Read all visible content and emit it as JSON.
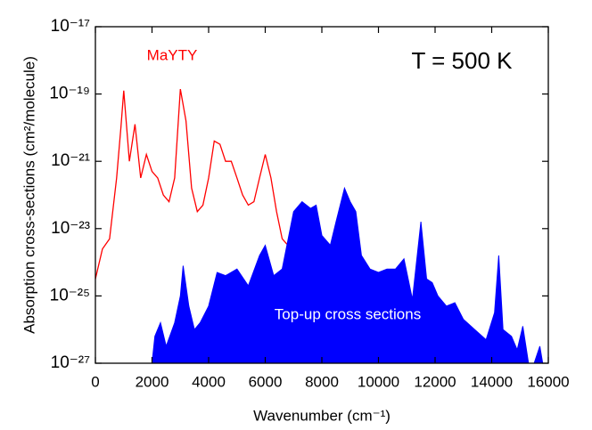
{
  "chart_data": {
    "type": "line-area",
    "annotation": "T = 500 K",
    "xlabel": "Wavenumber (cm⁻¹)",
    "ylabel": "Absorption cross-sections (cm²/molecule)",
    "xlim": [
      0,
      16000
    ],
    "xticks": [
      0,
      2000,
      4000,
      6000,
      8000,
      10000,
      12000,
      14000,
      16000
    ],
    "ylim": [
      1e-27,
      1e-17
    ],
    "yscale": "log",
    "yticks": [
      {
        "value": 1e-27,
        "label": "10⁻²⁷"
      },
      {
        "value": 1e-25,
        "label": "10⁻²⁵"
      },
      {
        "value": 1e-23,
        "label": "10⁻²³"
      },
      {
        "value": 1e-21,
        "label": "10⁻²¹"
      },
      {
        "value": 1e-19,
        "label": "10⁻¹⁹"
      },
      {
        "value": 1e-17,
        "label": "10⁻¹⁷"
      }
    ],
    "series": [
      {
        "name": "MaYTY",
        "color": "#ff0000",
        "style": "line",
        "x": [
          0,
          250,
          500,
          750,
          900,
          1000,
          1200,
          1400,
          1600,
          1800,
          2000,
          2200,
          2400,
          2600,
          2800,
          3000,
          3200,
          3400,
          3600,
          3800,
          4000,
          4200,
          4400,
          4600,
          4800,
          5000,
          5200,
          5400,
          5600,
          5800,
          6000,
          6200,
          6400,
          6600,
          6800,
          7000
        ],
        "values": [
          3.2e-25,
          2.5e-24,
          5e-24,
          3.2e-22,
          1e-20,
          1.26e-19,
          1e-21,
          1.26e-20,
          3.2e-22,
          1.6e-21,
          5e-22,
          3.2e-22,
          1e-22,
          6.3e-23,
          3.2e-22,
          1.4e-19,
          1.6e-20,
          1.6e-22,
          3.2e-23,
          5e-23,
          3.2e-22,
          4e-21,
          3.2e-21,
          1e-21,
          1e-21,
          3.2e-22,
          1e-22,
          5e-23,
          6.3e-23,
          3.2e-22,
          1.6e-21,
          3.2e-22,
          3.2e-23,
          5e-24,
          3.2e-24,
          1.6e-23
        ]
      },
      {
        "name": "Top-up cross sections",
        "color": "#0000ff",
        "style": "area",
        "x": [
          2000,
          2100,
          2300,
          2500,
          2800,
          3000,
          3100,
          3300,
          3500,
          3700,
          4000,
          4300,
          4600,
          5000,
          5400,
          5800,
          6000,
          6300,
          6600,
          7000,
          7300,
          7600,
          7800,
          8000,
          8300,
          8500,
          8800,
          9000,
          9200,
          9400,
          9700,
          10000,
          10300,
          10600,
          10900,
          11200,
          11500,
          11700,
          11900,
          12100,
          12400,
          12700,
          13000,
          13400,
          13800,
          14100,
          14250,
          14400,
          14700,
          14900,
          15100,
          15300,
          15500,
          15700,
          15800
        ],
        "values": [
          1e-27,
          6.3e-27,
          1.6e-26,
          3.2e-27,
          1.6e-26,
          1e-25,
          7.9e-25,
          5e-26,
          1e-26,
          1.6e-26,
          5e-26,
          5e-25,
          4e-25,
          6.3e-25,
          2e-25,
          1.6e-24,
          3.2e-24,
          4e-25,
          6.3e-25,
          3.2e-23,
          6.3e-23,
          4e-23,
          5e-23,
          6.3e-24,
          3.2e-24,
          1.6e-23,
          1.6e-22,
          6.3e-23,
          3.2e-23,
          1.6e-24,
          6.3e-25,
          5e-25,
          6.3e-25,
          6.3e-25,
          1.26e-24,
          7.9e-26,
          1.6e-23,
          3.2e-25,
          2.5e-25,
          1e-25,
          5e-26,
          6.3e-26,
          2e-26,
          1e-26,
          5e-27,
          3.2e-26,
          1.6e-24,
          1e-26,
          6.3e-27,
          2.5e-27,
          1.26e-26,
          1e-27,
          1e-27,
          3.2e-27,
          1e-27
        ]
      }
    ]
  }
}
